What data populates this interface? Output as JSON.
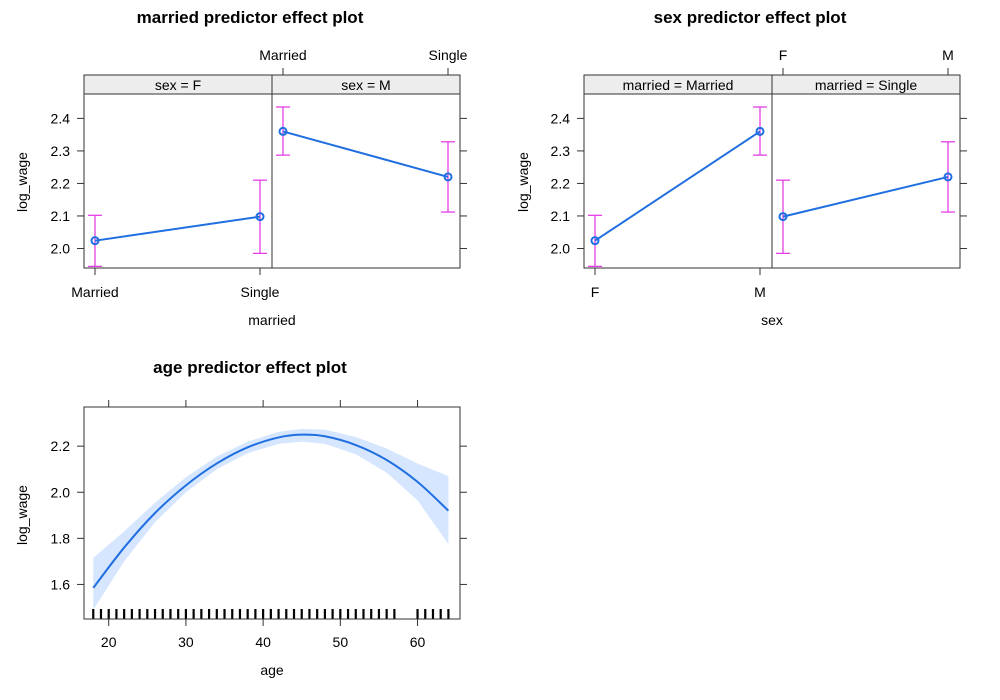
{
  "colors": {
    "line": "#1f6fe0",
    "ci": "#e53ee5",
    "band": "#d6e6ff",
    "strip": "#ededed",
    "frame": "#333333"
  },
  "chart_data": [
    {
      "type": "line",
      "title": "married predictor effect plot",
      "xlabel": "married",
      "ylabel": "log_wage",
      "categories": [
        "Married",
        "Single"
      ],
      "ylim": [
        1.94,
        2.475
      ],
      "yticks": [
        2.0,
        2.1,
        2.2,
        2.3,
        2.4
      ],
      "panels": [
        {
          "strip": "sex = F",
          "fit": [
            2.024,
            2.098
          ],
          "lower": [
            1.945,
            1.985
          ],
          "upper": [
            2.102,
            2.21
          ]
        },
        {
          "strip": "sex = M",
          "fit": [
            2.36,
            2.22
          ],
          "lower": [
            2.287,
            2.112
          ],
          "upper": [
            2.435,
            2.328
          ]
        }
      ]
    },
    {
      "type": "line",
      "title": "sex predictor effect plot",
      "xlabel": "sex",
      "ylabel": "log_wage",
      "categories": [
        "F",
        "M"
      ],
      "ylim": [
        1.94,
        2.475
      ],
      "yticks": [
        2.0,
        2.1,
        2.2,
        2.3,
        2.4
      ],
      "panels": [
        {
          "strip": "married = Married",
          "fit": [
            2.024,
            2.36
          ],
          "lower": [
            1.945,
            2.287
          ],
          "upper": [
            2.102,
            2.435
          ]
        },
        {
          "strip": "married = Single",
          "fit": [
            2.098,
            2.22
          ],
          "lower": [
            1.985,
            2.112
          ],
          "upper": [
            2.21,
            2.328
          ]
        }
      ]
    },
    {
      "type": "area",
      "title": "age predictor effect plot",
      "xlabel": "age",
      "ylabel": "log_wage",
      "xlim": [
        16.8,
        65.5
      ],
      "ylim": [
        1.45,
        2.37
      ],
      "xticks": [
        20,
        30,
        40,
        50,
        60
      ],
      "yticks": [
        1.6,
        1.8,
        2.0,
        2.2
      ],
      "x": [
        18,
        22,
        26,
        30,
        34,
        38,
        42,
        45,
        48,
        52,
        56,
        60,
        64
      ],
      "fit": [
        1.585,
        1.76,
        1.91,
        2.03,
        2.125,
        2.195,
        2.238,
        2.25,
        2.243,
        2.205,
        2.14,
        2.045,
        1.92
      ],
      "lower": [
        1.49,
        1.7,
        1.87,
        2.0,
        2.1,
        2.17,
        2.21,
        2.22,
        2.21,
        2.165,
        2.085,
        1.965,
        1.775
      ],
      "upper": [
        1.715,
        1.83,
        1.955,
        2.065,
        2.155,
        2.22,
        2.262,
        2.275,
        2.272,
        2.24,
        2.19,
        2.125,
        2.07
      ],
      "rug": [
        18,
        19,
        20,
        21,
        22,
        23,
        24,
        25,
        26,
        27,
        28,
        29,
        30,
        31,
        32,
        33,
        34,
        35,
        36,
        37,
        38,
        39,
        40,
        41,
        42,
        43,
        44,
        45,
        46,
        47,
        48,
        49,
        50,
        51,
        52,
        53,
        54,
        55,
        56,
        57,
        60,
        61,
        62,
        63,
        64
      ]
    }
  ]
}
